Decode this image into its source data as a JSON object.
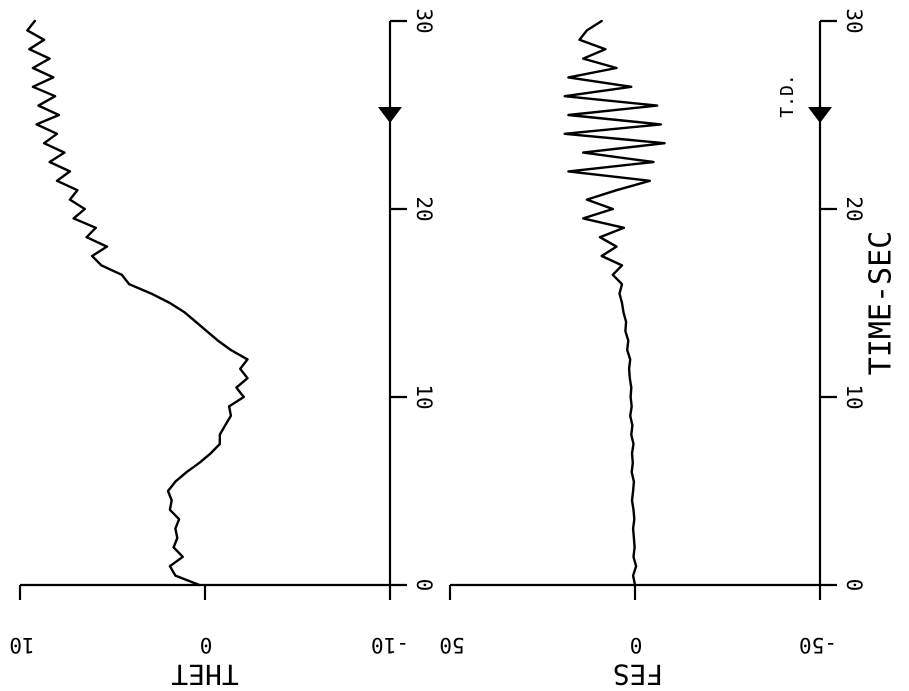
{
  "chart_data": [
    {
      "type": "line",
      "panel": "top",
      "ylabel": "THET",
      "y_tick_labels": [
        "10",
        "0",
        "-10"
      ],
      "x_tick_labels": [
        "0",
        "10",
        "20",
        "30"
      ],
      "xlim": [
        0,
        30
      ],
      "ylim": [
        -10,
        10
      ],
      "grid": false,
      "touchdown_marker": {
        "x": 25,
        "label": ""
      },
      "series": [
        {
          "x": [
            0,
            0.5,
            1,
            1.5,
            2,
            2.5,
            3,
            3.5,
            4,
            4.5,
            5,
            5.5,
            6,
            6.5,
            7,
            7.5,
            8,
            8.5,
            9,
            9.5,
            10,
            10.5,
            11,
            11.5,
            12,
            12.5,
            13,
            13.5,
            14,
            14.5,
            15,
            15.5,
            16,
            16.5,
            17,
            17.5,
            18,
            18.5,
            19,
            19.5,
            20,
            20.5,
            21,
            21.5,
            22,
            22.5,
            23,
            23.5,
            24,
            24.5,
            25,
            25.5,
            26,
            26.5,
            27,
            27.5,
            28,
            28.5,
            29,
            29.5,
            30
          ],
          "values": [
            0.3,
            1.6,
            1.9,
            1.2,
            1.7,
            1.5,
            1.6,
            1.4,
            1.9,
            1.8,
            2,
            1.6,
            1,
            0.3,
            -0.3,
            -0.8,
            -0.8,
            -1.1,
            -1.4,
            -1.3,
            -2.1,
            -1.7,
            -2.3,
            -1.9,
            -2.3,
            -1.4,
            -0.7,
            -0.1,
            0.5,
            1.1,
            1.9,
            2.9,
            4.1,
            4.5,
            5.6,
            6.1,
            5.3,
            6.4,
            5.9,
            7.1,
            6.5,
            7.3,
            6.9,
            8,
            7.3,
            8.4,
            7.6,
            8.7,
            8,
            9.1,
            7.9,
            9,
            8.1,
            9.3,
            8.2,
            9.3,
            8.4,
            9.5,
            8.7,
            9.6,
            9.2
          ]
        }
      ]
    },
    {
      "type": "line",
      "panel": "bottom",
      "ylabel": "FES",
      "xlabel": "TIME-SEC",
      "y_tick_labels": [
        "50",
        "0",
        "-50"
      ],
      "x_tick_labels": [
        "0",
        "10",
        "20",
        "30"
      ],
      "xlim": [
        0,
        30
      ],
      "ylim": [
        -50,
        50
      ],
      "grid": false,
      "touchdown_marker": {
        "x": 25,
        "label": "T.D."
      },
      "series": [
        {
          "x": [
            0,
            0.5,
            1,
            1.5,
            2,
            2.5,
            3,
            3.5,
            4,
            4.5,
            5,
            5.5,
            6,
            6.5,
            7,
            7.5,
            8,
            8.5,
            9,
            9.5,
            10,
            10.5,
            11,
            11.5,
            12,
            12.5,
            13,
            13.5,
            14,
            14.5,
            15,
            15.5,
            16,
            16.5,
            17,
            17.5,
            18,
            18.5,
            19,
            19.5,
            20,
            20.5,
            21,
            21.5,
            22,
            22.5,
            23,
            23.5,
            24,
            24.5,
            25,
            25.5,
            26,
            26.5,
            27,
            27.5,
            28,
            28.5,
            29,
            29.5,
            30
          ],
          "values": [
            0,
            0.5,
            -0.3,
            0.4,
            0.1,
            0.3,
            0.5,
            0.2,
            0.4,
            0.8,
            0.5,
            0.3,
            0.9,
            0.6,
            0.8,
            0.4,
            1,
            0.7,
            1.3,
            0.9,
            1.2,
            1,
            1.4,
            1.6,
            1.3,
            2.1,
            1.8,
            2.6,
            2.4,
            3.1,
            3.5,
            4.2,
            3.5,
            6,
            3.5,
            9,
            5,
            9.5,
            3,
            14,
            6,
            13,
            5,
            -4,
            18,
            -5,
            14,
            -8,
            19,
            -7,
            18,
            -6,
            19,
            1,
            18,
            5,
            14,
            8,
            15,
            13,
            9
          ]
        }
      ]
    }
  ]
}
